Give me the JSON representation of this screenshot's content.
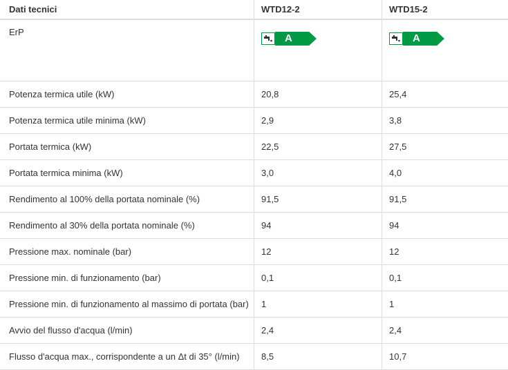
{
  "header": {
    "col0": "Dati tecnici",
    "col1": "WTD12-2",
    "col2": "WTD15-2"
  },
  "erp": {
    "label": "ErP",
    "class1": "A",
    "class2": "A",
    "badge_color": "#009a44",
    "icon": "water-tap-icon"
  },
  "rows": [
    {
      "label": "Potenza termica utile (kW)",
      "v1": "20,8",
      "v2": "25,4"
    },
    {
      "label": "Potenza termica utile minima (kW)",
      "v1": "2,9",
      "v2": "3,8"
    },
    {
      "label": "Portata termica (kW)",
      "v1": "22,5",
      "v2": "27,5"
    },
    {
      "label": "Portata termica minima (kW)",
      "v1": "3,0",
      "v2": "4,0"
    },
    {
      "label": "Rendimento al 100% della portata nominale (%)",
      "v1": "91,5",
      "v2": "91,5"
    },
    {
      "label": "Rendimento al 30% della portata nominale (%)",
      "v1": "94",
      "v2": "94"
    },
    {
      "label": "Pressione max. nominale (bar)",
      "v1": "12",
      "v2": "12"
    },
    {
      "label": "Pressione min. di funzionamento (bar)",
      "v1": "0,1",
      "v2": "0,1"
    },
    {
      "label": "Pressione min. di funzionamento al massimo di portata (bar)",
      "v1": "1",
      "v2": "1"
    },
    {
      "label": "Avvio del flusso d'acqua (l/min)",
      "v1": "2,4",
      "v2": "2,4"
    },
    {
      "label": "Flusso d'acqua max., corrispondente a un Δt di 35° (l/min)",
      "v1": "8,5",
      "v2": "10,7"
    }
  ]
}
